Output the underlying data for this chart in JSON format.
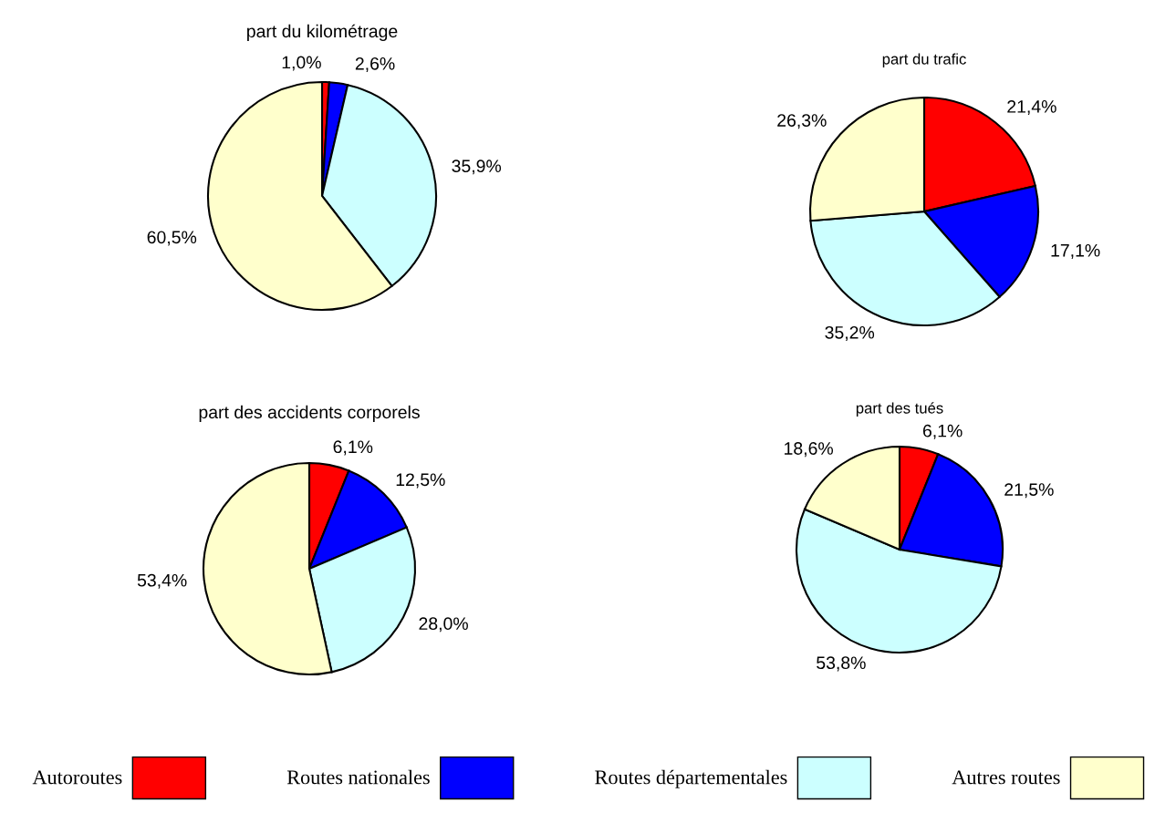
{
  "chart_data": [
    {
      "type": "pie",
      "title": "part du kilométrage",
      "categories": [
        "Autoroutes",
        "Routes nationales",
        "Routes départementales",
        "Autres routes"
      ],
      "values": [
        1.0,
        2.6,
        35.9,
        60.5
      ],
      "value_labels": [
        "1,0%",
        "2,6%",
        "35,9%",
        "60,5%"
      ],
      "colors": [
        "#ff0000",
        "#0000ff",
        "#ccffff",
        "#ffffcc"
      ],
      "legend": "bottom"
    },
    {
      "type": "pie",
      "title": "part du trafic",
      "categories": [
        null,
        null,
        null,
        null
      ],
      "values": [
        21.4,
        17.1,
        35.2,
        26.3
      ],
      "value_labels": [
        "21,4%",
        "17,1%",
        "35,2%",
        "26,3%"
      ],
      "colors": [
        "#ff0000",
        "#0000ff",
        "#ccffff",
        "#ffffcc"
      ]
    },
    {
      "type": "pie",
      "title": "part des accidents corporels",
      "categories": [
        null,
        null,
        null,
        null
      ],
      "values": [
        6.1,
        12.5,
        28.0,
        53.4
      ],
      "value_labels": [
        "6,1%",
        "12,5%",
        "28,0%",
        "53,4%"
      ],
      "colors": [
        "#ff0000",
        "#0000ff",
        "#ccffff",
        "#ffffcc"
      ]
    },
    {
      "type": "pie",
      "title": "part des tués",
      "categories": [
        null,
        null,
        null,
        null
      ],
      "values": [
        6.1,
        21.5,
        53.8,
        18.6
      ],
      "value_labels": [
        "6,1%",
        "21,5%",
        "53,8%",
        "18,6%"
      ],
      "colors": [
        "#ff0000",
        "#0000ff",
        "#ccffff",
        "#ffffcc"
      ]
    }
  ]
}
